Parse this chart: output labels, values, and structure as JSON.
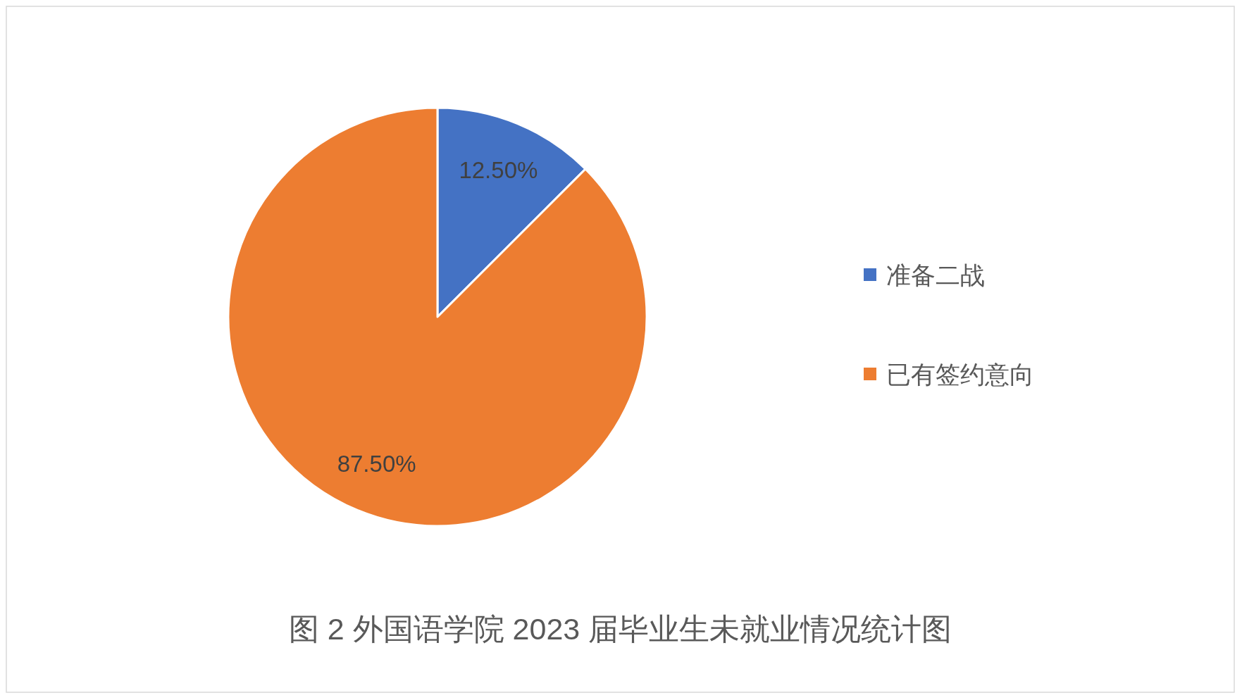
{
  "chart_data": {
    "type": "pie",
    "title": "图 2 外国语学院 2023 届毕业生未就业情况统计图",
    "categories": [
      "准备二战",
      "已有签约意向"
    ],
    "values": [
      12.5,
      87.5
    ],
    "colors": [
      "#4472c4",
      "#ed7d31"
    ],
    "value_labels": [
      "12.50%",
      "87.50%"
    ],
    "legend": "right"
  }
}
